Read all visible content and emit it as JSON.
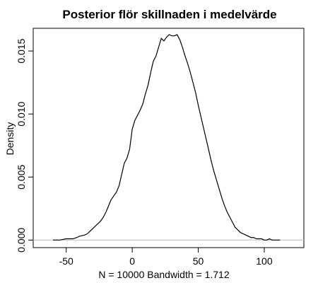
{
  "chart_data": {
    "type": "line",
    "title": "Posterior flör skillnaden i medelvärde",
    "xlabel": "N = 10000   Bandwidth = 1.712",
    "ylabel": "Density",
    "xlim": [
      -75,
      130
    ],
    "ylim": [
      -0.0006,
      0.0168
    ],
    "x_ticks": [
      -50,
      0,
      50,
      100
    ],
    "x_tick_labels": [
      "-50",
      "0",
      "50",
      "100"
    ],
    "y_ticks": [
      0.0,
      0.005,
      0.01,
      0.015
    ],
    "y_tick_labels": [
      "0.000",
      "0.005",
      "0.010",
      "0.015"
    ],
    "baseline": 0,
    "grid": false,
    "legend": "none",
    "colors": {
      "line": "#000000",
      "baseline": "#bdbdbd",
      "axis": "#000000",
      "background": "#ffffff"
    },
    "series": [
      {
        "x": [
          -60,
          -55,
          -50,
          -45,
          -42,
          -40,
          -36,
          -34,
          -32,
          -30,
          -28,
          -26,
          -24,
          -22,
          -20,
          -18,
          -16,
          -14,
          -12,
          -10,
          -8,
          -6,
          -4,
          -2,
          0,
          2,
          4,
          6,
          8,
          10,
          12,
          14,
          16,
          18,
          20,
          22,
          24,
          26,
          28,
          30,
          32,
          34,
          36,
          38,
          40,
          42,
          44,
          46,
          48,
          50,
          52,
          54,
          56,
          58,
          60,
          62,
          64,
          66,
          68,
          70,
          72,
          74,
          76,
          78,
          80,
          82,
          84,
          86,
          88,
          90,
          92,
          94,
          96,
          98,
          100,
          102,
          104,
          106,
          108,
          110,
          112
        ],
        "y": [
          0.0,
          0.0,
          0.0001,
          0.0001,
          0.0002,
          0.0003,
          0.0004,
          0.0005,
          0.0007,
          0.0009,
          0.0011,
          0.0013,
          0.0015,
          0.0018,
          0.0022,
          0.0027,
          0.0032,
          0.0035,
          0.0038,
          0.0043,
          0.0052,
          0.0061,
          0.0065,
          0.0072,
          0.0088,
          0.0095,
          0.0099,
          0.0103,
          0.0108,
          0.0116,
          0.0123,
          0.0133,
          0.0142,
          0.0146,
          0.0153,
          0.016,
          0.0158,
          0.0161,
          0.0163,
          0.0162,
          0.0162,
          0.0163,
          0.0159,
          0.0153,
          0.0146,
          0.014,
          0.0133,
          0.0125,
          0.0117,
          0.0107,
          0.0098,
          0.0089,
          0.008,
          0.0071,
          0.0062,
          0.0054,
          0.0047,
          0.004,
          0.0033,
          0.0027,
          0.0022,
          0.0018,
          0.0014,
          0.001,
          0.0008,
          0.0006,
          0.0005,
          0.0004,
          0.0003,
          0.0002,
          0.0002,
          0.0001,
          0.0001,
          0.0001,
          0.0,
          0.0,
          0.0001,
          0.0,
          0.0,
          0.0,
          0.0
        ]
      }
    ]
  }
}
